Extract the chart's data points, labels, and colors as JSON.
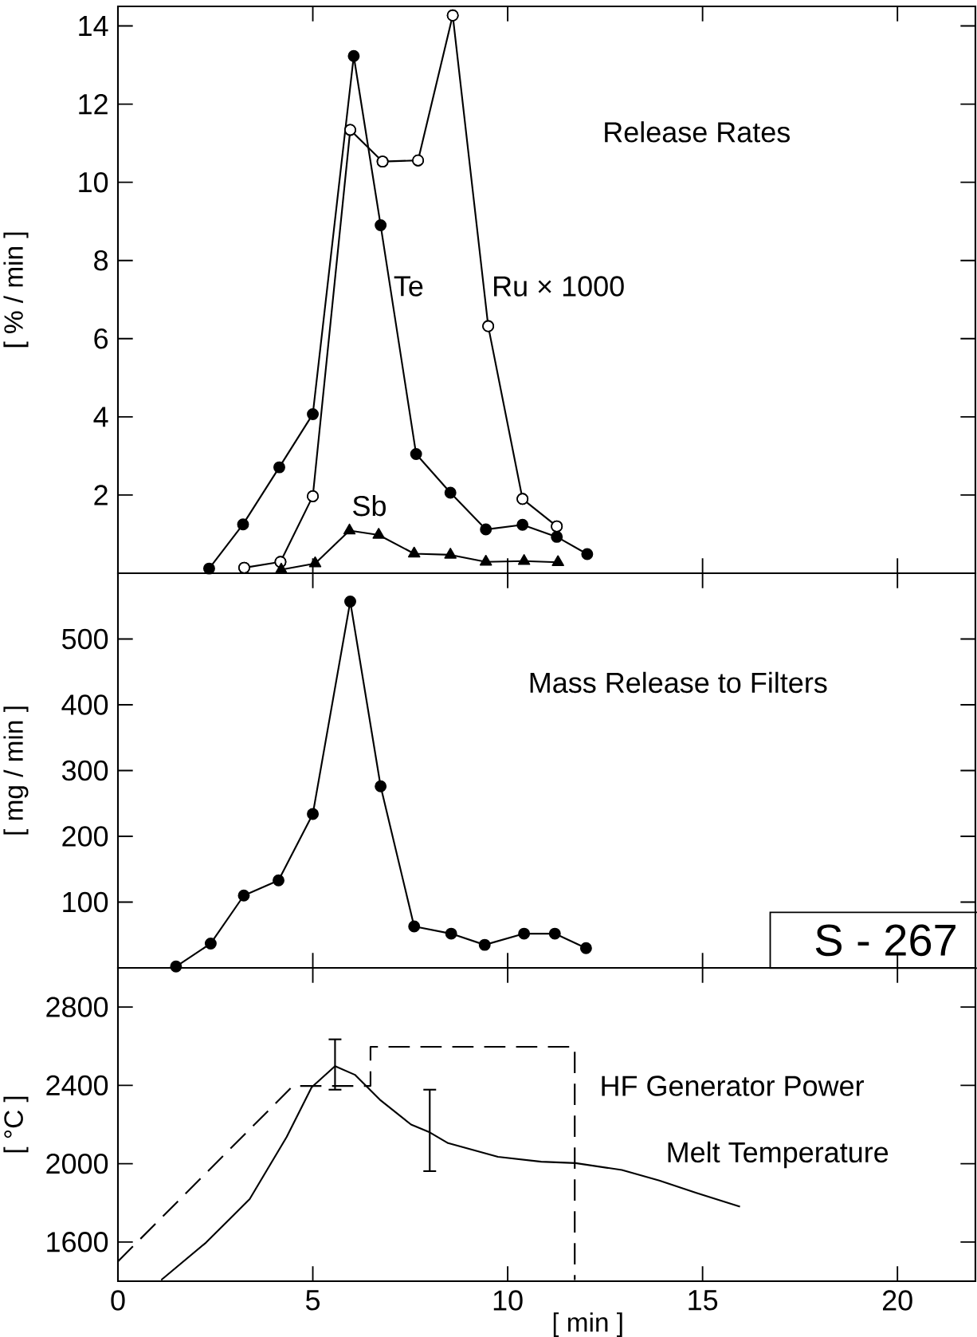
{
  "chart_data": [
    {
      "type": "line",
      "ylabel": "[ % / min ]",
      "xlim": [
        0,
        22
      ],
      "ylim": [
        0,
        14.5
      ],
      "xticks": [
        0,
        5,
        10,
        15,
        20
      ],
      "yticks": [
        2,
        4,
        6,
        8,
        10,
        12,
        14
      ],
      "tick_labels": "y",
      "annotations": [
        "Release Rates"
      ],
      "series": [
        {
          "name": "Te",
          "color": "#000000",
          "marker": "circle",
          "x": [
            2.34,
            3.21,
            4.14,
            5.0,
            6.05,
            6.74,
            7.65,
            8.53,
            9.44,
            10.38,
            11.26,
            12.04
          ],
          "values": [
            0.12,
            1.25,
            2.71,
            4.07,
            13.23,
            8.9,
            3.05,
            2.06,
            1.12,
            1.24,
            0.93,
            0.49
          ]
        },
        {
          "name": "Ru × 1000",
          "color": "#000000",
          "marker": "circle",
          "colors": [
            "#ffffff",
            "#ffffff",
            "#ffffff",
            "#ffffff",
            "#ffffff",
            "#ffffff",
            "#ffffff",
            "#ffffff",
            "#ffffff",
            "#ffffff"
          ],
          "x": [
            3.24,
            4.17,
            5.0,
            5.96,
            6.79,
            7.7,
            8.59,
            9.5,
            10.38,
            11.26
          ],
          "values": [
            0.14,
            0.29,
            1.97,
            11.34,
            10.53,
            10.56,
            14.27,
            6.32,
            1.9,
            1.2
          ]
        },
        {
          "name": "Sb",
          "color": "#000000",
          "marker": "triangle",
          "x": [
            4.19,
            5.06,
            5.94,
            6.69,
            7.6,
            8.53,
            9.44,
            10.42,
            11.29
          ],
          "values": [
            0.09,
            0.25,
            1.09,
            0.98,
            0.5,
            0.47,
            0.29,
            0.31,
            0.28
          ]
        }
      ]
    },
    {
      "type": "line",
      "ylabel": "[ mg / min ]",
      "xlim": [
        0,
        22
      ],
      "ylim": [
        0,
        600
      ],
      "xticks": [
        0,
        5,
        10,
        15,
        20
      ],
      "yticks": [
        100,
        200,
        300,
        400,
        500
      ],
      "tick_labels": "y",
      "annotations": [
        "Mass Release to Filters",
        "S - 267"
      ],
      "series": [
        {
          "color": "#000000",
          "marker": "circle",
          "x": [
            1.49,
            2.38,
            3.23,
            4.12,
            5.0,
            5.96,
            6.74,
            7.6,
            8.55,
            9.41,
            10.42,
            11.21,
            12.01
          ],
          "values": [
            2,
            37,
            110,
            133,
            234,
            557,
            276,
            63,
            52,
            35,
            52,
            52,
            30
          ]
        }
      ]
    },
    {
      "type": "line",
      "xlabel": "[ min ]",
      "ylabel": "[ °C ]",
      "xlim": [
        0,
        22
      ],
      "ylim": [
        1400,
        3000
      ],
      "xticks": [
        0,
        5,
        10,
        15,
        20
      ],
      "yticks": [
        1600,
        2000,
        2400,
        2800
      ],
      "series": [
        {
          "name": "HF Generator Power",
          "color": "#000000",
          "line_style": "dashed",
          "x": [
            0,
            4.49,
            6.48,
            6.48,
            11.72,
            11.72
          ],
          "values": [
            1501,
            2397,
            2397,
            2597,
            2597,
            1406
          ]
        },
        {
          "name": "Melt Temperature",
          "color": "#000000",
          "line_style": "solid",
          "x": [
            1.11,
            2.26,
            3.38,
            4.33,
            4.97,
            5.57,
            6.08,
            6.72,
            7.52,
            8.0,
            8.47,
            9.75,
            10.86,
            11.74,
            12.93,
            13.89,
            14.84,
            15.96
          ],
          "values": [
            1406,
            1597,
            1819,
            2137,
            2390,
            2498,
            2454,
            2327,
            2200,
            2160,
            2105,
            2035,
            2010,
            2003,
            1968,
            1914,
            1851,
            1781
          ],
          "errors": [
            null,
            null,
            null,
            null,
            null,
            [
              2378,
              2635
            ],
            null,
            null,
            null,
            [
              1962,
              2378
            ],
            null,
            null,
            null,
            null,
            null,
            null,
            null,
            null
          ]
        }
      ]
    }
  ]
}
